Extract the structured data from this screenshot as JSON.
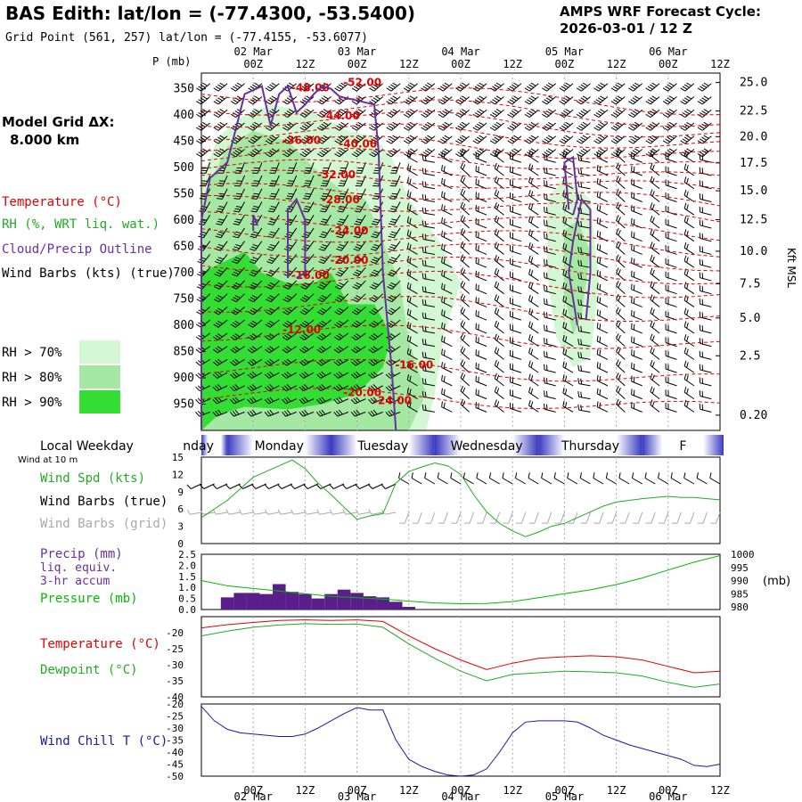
{
  "header": {
    "title": "BAS Edith:  lat/lon = (-77.4300, -53.5400)",
    "grid_point": "Grid Point (561, 257) lat/lon = (-77.4155, -53.6077)",
    "cycle_title": "AMPS WRF Forecast Cycle:",
    "cycle_value": "2026-03-01 / 12  Z"
  },
  "time_axis": {
    "hour_labels": [
      "00Z",
      "12Z",
      "00Z",
      "12Z",
      "00Z",
      "12Z",
      "00Z",
      "12Z",
      "00Z",
      "12Z"
    ],
    "hour_label_times": [
      12,
      24,
      36,
      48,
      60,
      72,
      84,
      96,
      108,
      120
    ],
    "date_labels": [
      "02 Mar",
      "03 Mar",
      "04 Mar",
      "05 Mar",
      "06 Mar"
    ],
    "date_label_times": [
      12,
      36,
      60,
      84,
      108
    ],
    "range_hours": [
      0,
      120
    ]
  },
  "left_labels": {
    "p_unit": "P (mb)",
    "model_grid": "Model Grid ΔX:",
    "model_grid_value": "8.000 km",
    "temperature": "Temperature (°C)",
    "rh": "RH (%, WRT liq. wat.)",
    "cloud": "Cloud/Precip Outline",
    "wind_barbs": "Wind Barbs (kts) (true)",
    "rh70": "RH > 70%",
    "rh80": "RH > 80%",
    "rh90": "RH > 90%",
    "local_weekday": "Local Weekday",
    "wind_at": "Wind at 10 m",
    "wind_spd": "Wind Spd (kts)",
    "wind_barbs_true": "Wind Barbs (true)",
    "wind_barbs_grid": "Wind Barbs (grid)",
    "precip1": "Precip (mm)",
    "precip2": "liq. equiv.",
    "precip3": "3-hr accum",
    "pressure": "Pressure (mb)",
    "temp2": "Temperature (°C)",
    "dewpoint": "Dewpoint (°C)",
    "windchill": "Wind Chill T (°C)",
    "kft": "Kft MSL",
    "mb_unit": "(mb)"
  },
  "colors": {
    "temperature": "#e00000",
    "rh": "#22aa22",
    "cloud": "#6a2f9e",
    "grid_gray": "#aaaaaa",
    "rh70": "#d2f7d2",
    "rh80": "#a4e8a4",
    "rh90": "#33dd33",
    "windchill": "#1a1aa0",
    "pressure": "#00bb00",
    "precip_bar": "#5a1e8c"
  },
  "chart_data": [
    {
      "type": "contour",
      "name": "cross-section",
      "pressure_ticks": [
        350,
        400,
        450,
        500,
        550,
        600,
        650,
        700,
        750,
        800,
        850,
        900,
        950
      ],
      "ylim": [
        320,
        1000
      ],
      "height_ticks": [
        "25.0",
        "22.5",
        "20.0",
        "17.5",
        "15.0",
        "12.5",
        "10.0",
        "7.5",
        "5.0",
        "2.5",
        "0.20"
      ],
      "height_tick_pressures": [
        338,
        392,
        441,
        491,
        544,
        599,
        659,
        721,
        786,
        858,
        971
      ],
      "temperature_labels": [
        {
          "text": "-48.00",
          "t": 24,
          "p": 355
        },
        {
          "text": "-52.00",
          "t": 36,
          "p": 345
        },
        {
          "text": "-44.00",
          "t": 31,
          "p": 408
        },
        {
          "text": "-36.00",
          "t": 22,
          "p": 455
        },
        {
          "text": "-40.00",
          "t": 35,
          "p": 462
        },
        {
          "text": "-32.00",
          "t": 30,
          "p": 520
        },
        {
          "text": "-28.00",
          "t": 31,
          "p": 568
        },
        {
          "text": "-24.00",
          "t": 33,
          "p": 627
        },
        {
          "text": "-20.00",
          "t": 33,
          "p": 683
        },
        {
          "text": "-16.00",
          "t": 24,
          "p": 712
        },
        {
          "text": "-12.00",
          "t": 22,
          "p": 815
        },
        {
          "text": "-16.00",
          "t": 48,
          "p": 882
        },
        {
          "text": "-20.00",
          "t": 36,
          "p": 935
        },
        {
          "text": "-24.00",
          "t": 43,
          "p": 950
        }
      ],
      "weekdays": [
        "nday",
        "Monday",
        "Tuesday",
        "Wednesday",
        "Thursday",
        "F"
      ]
    },
    {
      "type": "line",
      "name": "wind",
      "ylim": [
        0,
        15
      ],
      "yticks": [
        0,
        3,
        6,
        9,
        12,
        15
      ],
      "x": [
        0,
        6,
        12,
        18,
        21,
        24,
        27,
        30,
        33,
        36,
        39,
        42,
        45,
        48,
        51,
        54,
        57,
        60,
        63,
        66,
        69,
        72,
        75,
        78,
        81,
        84,
        87,
        90,
        93,
        96,
        99,
        102,
        105,
        108,
        111,
        114,
        117,
        120
      ],
      "series": [
        {
          "values": [
            4.5,
            7.5,
            11.5,
            13.5,
            14.5,
            13,
            10.5,
            8.5,
            6.3,
            4.2,
            4.8,
            5.2,
            10.5,
            12.5,
            13.3,
            14,
            13.5,
            12,
            8.5,
            5.5,
            3.5,
            2.2,
            1.2,
            2,
            3,
            3.5,
            4.5,
            5.5,
            6.5,
            7.2,
            7.5,
            7.8,
            8,
            8.2,
            8,
            8,
            7.8,
            7.6
          ]
        }
      ]
    },
    {
      "type": "bar+line",
      "name": "precip-pressure",
      "precip_ylim": [
        0,
        2.5
      ],
      "precip_yticks": [
        "0.0",
        "0.5",
        "1.0",
        "1.5",
        "2.0",
        "2.5"
      ],
      "precip_x": [
        6,
        9,
        12,
        15,
        18,
        21,
        24,
        27,
        30,
        33,
        36,
        39,
        42,
        45,
        48
      ],
      "precip_values": [
        0.55,
        0.75,
        0.75,
        0.7,
        1.15,
        0.8,
        0.7,
        0.5,
        0.7,
        0.9,
        0.75,
        0.6,
        0.55,
        0.35,
        0.12
      ],
      "pressure_ylim": [
        979,
        1000
      ],
      "pressure_yticks": [
        980,
        985,
        990,
        995,
        1000
      ],
      "x": [
        0,
        6,
        12,
        18,
        24,
        30,
        36,
        42,
        48,
        54,
        60,
        66,
        72,
        78,
        84,
        90,
        96,
        102,
        108,
        114,
        120
      ],
      "pressure_values": [
        990,
        988,
        987,
        986,
        985,
        984,
        983.5,
        983,
        982.2,
        981.5,
        981.2,
        981.3,
        982,
        983.5,
        985,
        986.5,
        988.5,
        991,
        994,
        997,
        999.5
      ]
    },
    {
      "type": "line",
      "name": "temperature",
      "ylim": [
        -40,
        -15
      ],
      "yticks": [
        -40,
        -35,
        -30,
        -25,
        -20
      ],
      "x": [
        0,
        6,
        12,
        18,
        24,
        30,
        36,
        42,
        48,
        54,
        60,
        66,
        72,
        78,
        84,
        90,
        96,
        102,
        108,
        114,
        120
      ],
      "series": [
        {
          "name": "Temperature",
          "values": [
            -18.5,
            -17.5,
            -16.8,
            -16.2,
            -16,
            -16.2,
            -16,
            -16.5,
            -21,
            -25,
            -28.5,
            -31.5,
            -29.5,
            -28,
            -27.5,
            -27.2,
            -27.5,
            -28.5,
            -30.5,
            -32.5,
            -32
          ]
        },
        {
          "name": "Dewpoint",
          "values": [
            -21,
            -19.5,
            -18.3,
            -17.6,
            -17.2,
            -17.4,
            -17.3,
            -18.3,
            -23.5,
            -28,
            -32,
            -35,
            -33,
            -32.5,
            -32,
            -32.2,
            -32.5,
            -33.5,
            -35.5,
            -37,
            -36
          ]
        }
      ]
    },
    {
      "type": "line",
      "name": "windchill",
      "ylim": [
        -50,
        -20
      ],
      "yticks": [
        -20,
        -25,
        -30,
        -35,
        -40,
        -45,
        -50
      ],
      "x": [
        0,
        3,
        6,
        9,
        12,
        15,
        18,
        21,
        24,
        27,
        30,
        33,
        36,
        39,
        42,
        45,
        48,
        51,
        54,
        57,
        60,
        63,
        66,
        69,
        72,
        75,
        78,
        81,
        84,
        87,
        90,
        93,
        96,
        99,
        102,
        105,
        108,
        111,
        114,
        117,
        120
      ],
      "series": [
        {
          "name": "Wind Chill",
          "values": [
            -21,
            -27,
            -30.5,
            -32,
            -32.5,
            -33,
            -33.5,
            -33.5,
            -32.5,
            -30,
            -27,
            -24,
            -21.5,
            -22.5,
            -22.5,
            -35,
            -43,
            -46,
            -48,
            -49.5,
            -50,
            -49.5,
            -47,
            -40,
            -32,
            -27.5,
            -27,
            -27,
            -27,
            -27.5,
            -30,
            -33,
            -35,
            -37,
            -38.5,
            -40,
            -41.5,
            -43,
            -45.5,
            -46,
            -45
          ]
        }
      ]
    }
  ]
}
